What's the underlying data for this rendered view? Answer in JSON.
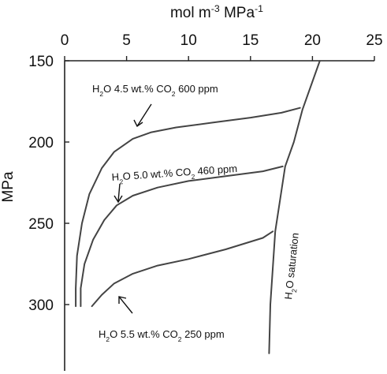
{
  "chart_data": {
    "type": "line",
    "xlabel_parts": [
      "mol m",
      "-3",
      " MPa",
      "-1"
    ],
    "ylabel": "MPa",
    "xlim": [
      0,
      25
    ],
    "ylim": [
      150,
      350
    ],
    "x_ticks": [
      "0",
      "5",
      "10",
      "15",
      "20",
      "25"
    ],
    "y_ticks": [
      "150",
      "200",
      "250",
      "300"
    ],
    "y_inverted": true,
    "x_axis_position": "top",
    "series": [
      {
        "label_parts": [
          "H",
          "2",
          "O 4.5 wt.% CO",
          "2",
          " 600 ppm"
        ],
        "points": [
          [
            0.9,
            301
          ],
          [
            0.9,
            290
          ],
          [
            1.0,
            270
          ],
          [
            1.4,
            250
          ],
          [
            2.0,
            232
          ],
          [
            3.0,
            216
          ],
          [
            4.0,
            206
          ],
          [
            5.5,
            198
          ],
          [
            7.0,
            194
          ],
          [
            9.0,
            191
          ],
          [
            12.0,
            188
          ],
          [
            15.0,
            185
          ],
          [
            17.5,
            182
          ],
          [
            19.0,
            179
          ]
        ]
      },
      {
        "label_parts": [
          "H",
          "2",
          "O 5.0 wt.% CO",
          "2",
          " 460 ppm"
        ],
        "points": [
          [
            1.3,
            301
          ],
          [
            1.3,
            290
          ],
          [
            1.6,
            275
          ],
          [
            2.3,
            260
          ],
          [
            3.2,
            248
          ],
          [
            4.2,
            239
          ],
          [
            5.5,
            233
          ],
          [
            7.5,
            228
          ],
          [
            10.0,
            224
          ],
          [
            13.0,
            221
          ],
          [
            16.0,
            218
          ],
          [
            17.6,
            215
          ]
        ]
      },
      {
        "label_parts": [
          "H",
          "2",
          "O 5.5 wt.% CO",
          "2",
          " 250 ppm"
        ],
        "points": [
          [
            2.2,
            301
          ],
          [
            3.0,
            294
          ],
          [
            4.0,
            287
          ],
          [
            5.5,
            281
          ],
          [
            7.5,
            276
          ],
          [
            10.0,
            272
          ],
          [
            13.0,
            266
          ],
          [
            16.0,
            259
          ],
          [
            16.8,
            255
          ]
        ]
      },
      {
        "label": "H2O saturation",
        "label_parts": [
          "H",
          "2",
          "O saturation"
        ],
        "points": [
          [
            20.6,
            150
          ],
          [
            19.2,
            180
          ],
          [
            18.5,
            200
          ],
          [
            17.8,
            215
          ],
          [
            17.0,
            255
          ],
          [
            16.6,
            300
          ],
          [
            16.5,
            330
          ]
        ]
      }
    ]
  }
}
